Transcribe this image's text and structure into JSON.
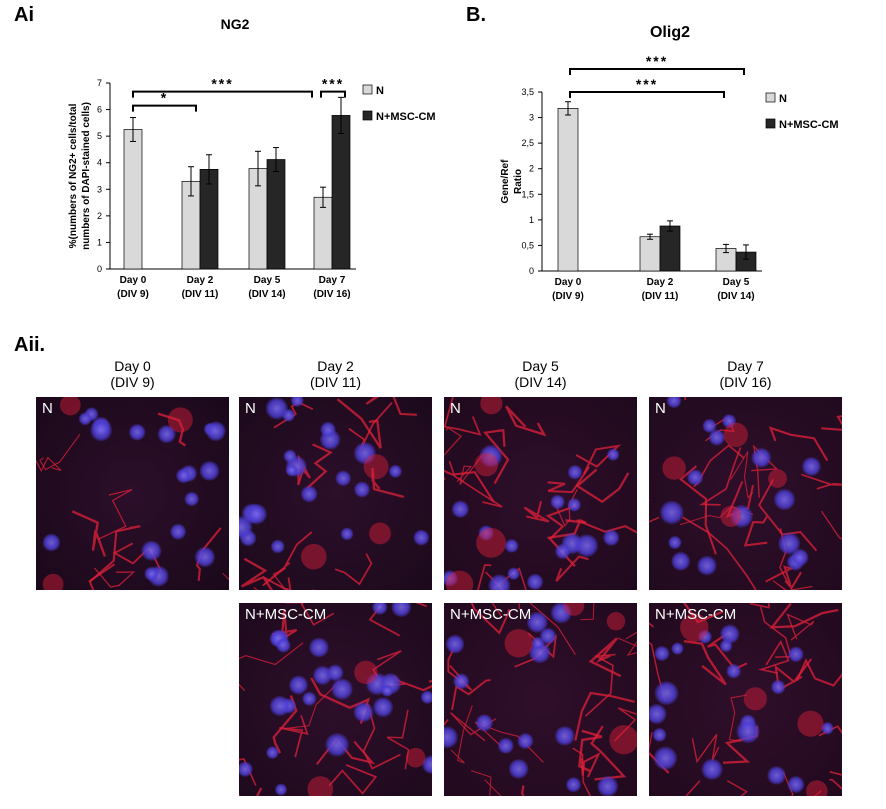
{
  "labels": {
    "ai": "Ai",
    "b": "B.",
    "aii": "Aii."
  },
  "chart_data": [
    {
      "type": "bar",
      "title": "NG2",
      "ylabel_line1": "%(numbers of NG2+ cells/total",
      "ylabel_line2": "numbers of DAPI-stained cells)",
      "categories": [
        "Day 0",
        "Day 2",
        "Day 5",
        "Day 7"
      ],
      "categories_sub": [
        "(DIV 9)",
        "(DIV 11)",
        "(DIV 14)",
        "(DIV 16)"
      ],
      "yticks": [
        "0",
        "1",
        "2",
        "3",
        "4",
        "5",
        "6",
        "7"
      ],
      "ylim": [
        0,
        7
      ],
      "series": [
        {
          "name": "N",
          "values": [
            5.25,
            3.3,
            3.78,
            2.7
          ],
          "errors": [
            0.45,
            0.55,
            0.65,
            0.38
          ],
          "color": "#d9d9d9"
        },
        {
          "name": "N+MSC-CM",
          "values": [
            null,
            3.75,
            4.12,
            5.78
          ],
          "errors": [
            null,
            0.55,
            0.45,
            0.68
          ],
          "color": "#262626"
        }
      ],
      "significance": [
        {
          "label": "*",
          "from": "Day 0",
          "to": "Day 2",
          "level": 6.15
        },
        {
          "label": "***",
          "from": "Day 0",
          "to": "Day 7",
          "level": 6.75
        },
        {
          "label": "***",
          "from": "Day 7 N",
          "to": "Day 7 N+MSC-CM",
          "level": 6.75
        }
      ],
      "legend_position": "right"
    },
    {
      "type": "bar",
      "title": "Olig2",
      "ylabel_line1": "Gene/Ref",
      "ylabel_line2": "Ratio",
      "categories": [
        "Day 0",
        "Day 2",
        "Day 5"
      ],
      "categories_sub": [
        "(DIV 9)",
        "(DIV 11)",
        "(DIV 14)"
      ],
      "yticks": [
        "0",
        "0,5",
        "1",
        "1,5",
        "2",
        "2,5",
        "3",
        "3,5"
      ],
      "ylim": [
        0,
        3.5
      ],
      "series": [
        {
          "name": "N",
          "values": [
            3.18,
            0.67,
            0.44
          ],
          "errors": [
            0.13,
            0.05,
            0.08
          ],
          "color": "#d9d9d9"
        },
        {
          "name": "N+MSC-CM",
          "values": [
            null,
            0.88,
            0.37
          ],
          "errors": [
            null,
            0.1,
            0.14
          ],
          "color": "#262626"
        }
      ],
      "significance": [
        {
          "label": "***",
          "from": "Day 0",
          "to": "Day 5",
          "level": 3.5
        },
        {
          "label": "***",
          "from": "Day 0",
          "to": "Day 2",
          "level": 3.48
        }
      ],
      "legend_position": "right"
    }
  ],
  "micrographs": {
    "columns": [
      {
        "day": "Day 0",
        "div": "(DIV 9)"
      },
      {
        "day": "Day 2",
        "div": "(DIV 11)"
      },
      {
        "day": "Day 5",
        "div": "(DIV 14)"
      },
      {
        "day": "Day 7",
        "div": "(DIV 16)"
      }
    ],
    "row_labels": {
      "n": "N",
      "msc": "N+MSC-CM"
    },
    "colors": {
      "nucleus": "#4b3bd0",
      "process": "#e0203a",
      "background": "#1a0a1c"
    }
  }
}
